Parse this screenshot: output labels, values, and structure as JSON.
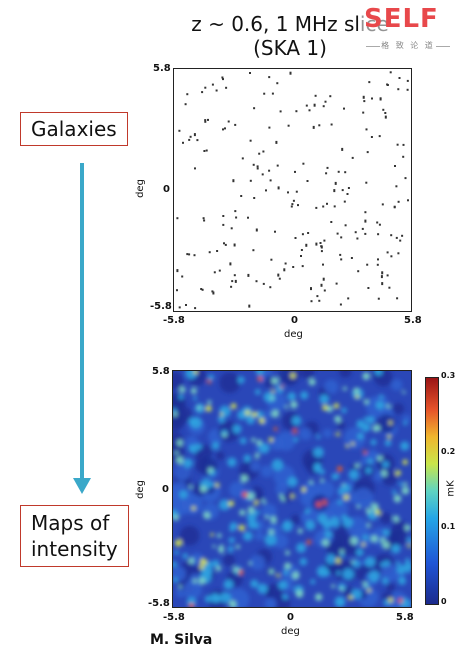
{
  "title": {
    "line1": "z ~ 0.6, 1 MHz slice",
    "line2": "(SKA 1)"
  },
  "logo": {
    "text": "SELF",
    "subtitle": "格 致 论 道"
  },
  "labels": {
    "galaxies": "Galaxies",
    "maps_line1": "Maps of",
    "maps_line2": "intensity"
  },
  "top_plot": {
    "ylabel": "deg",
    "xlabel": "deg",
    "y_ticks": [
      "5.8",
      "0",
      "-5.8"
    ],
    "x_ticks": [
      "-5.8",
      "0",
      "5.8"
    ]
  },
  "bottom_plot": {
    "ylabel": "deg",
    "xlabel": "deg",
    "y_ticks": [
      "5.8",
      "0",
      "-5.8"
    ],
    "x_ticks": [
      "-5.8",
      "0",
      "5.8"
    ]
  },
  "colorbar": {
    "label": "mK",
    "ticks": [
      "0.3",
      "0.2",
      "0.1",
      "0"
    ]
  },
  "author": "M. Silva",
  "colors": {
    "arrow": "#3aa8c9",
    "box_border": "#c0392b",
    "logo": "#e8484b"
  }
}
